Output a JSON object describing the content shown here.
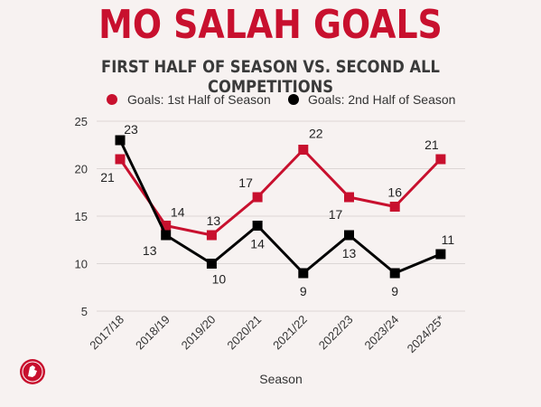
{
  "header": {
    "title": "MO SALAH GOALS",
    "subtitle": "FIRST HALF OF SEASON VS. SECOND ALL COMPETITIONS"
  },
  "colors": {
    "accent": "#c8102e",
    "first_half": "#c8102e",
    "second_half": "#000000",
    "background": "#f7f2f1"
  },
  "chart_data": {
    "type": "line",
    "x": [
      "2017/18",
      "2018/19",
      "2019/20",
      "2020/21",
      "2021/22",
      "2022/23",
      "2023/24",
      "2024/25*"
    ],
    "series": [
      {
        "name": "Goals: 1st Half of Season",
        "values": [
          21,
          14,
          13,
          17,
          22,
          17,
          16,
          21
        ],
        "color": "#c8102e",
        "marker": "circle"
      },
      {
        "name": "Goals: 2nd Half of Season",
        "values": [
          23,
          13,
          10,
          14,
          9,
          13,
          9,
          11
        ],
        "color": "#000000",
        "marker": "square"
      }
    ],
    "xlabel": "Season",
    "ylabel": "",
    "ylim": [
      5,
      25
    ],
    "yticks": [
      5,
      10,
      15,
      20,
      25
    ],
    "grid": true,
    "legend": "top",
    "data_labels": true
  }
}
